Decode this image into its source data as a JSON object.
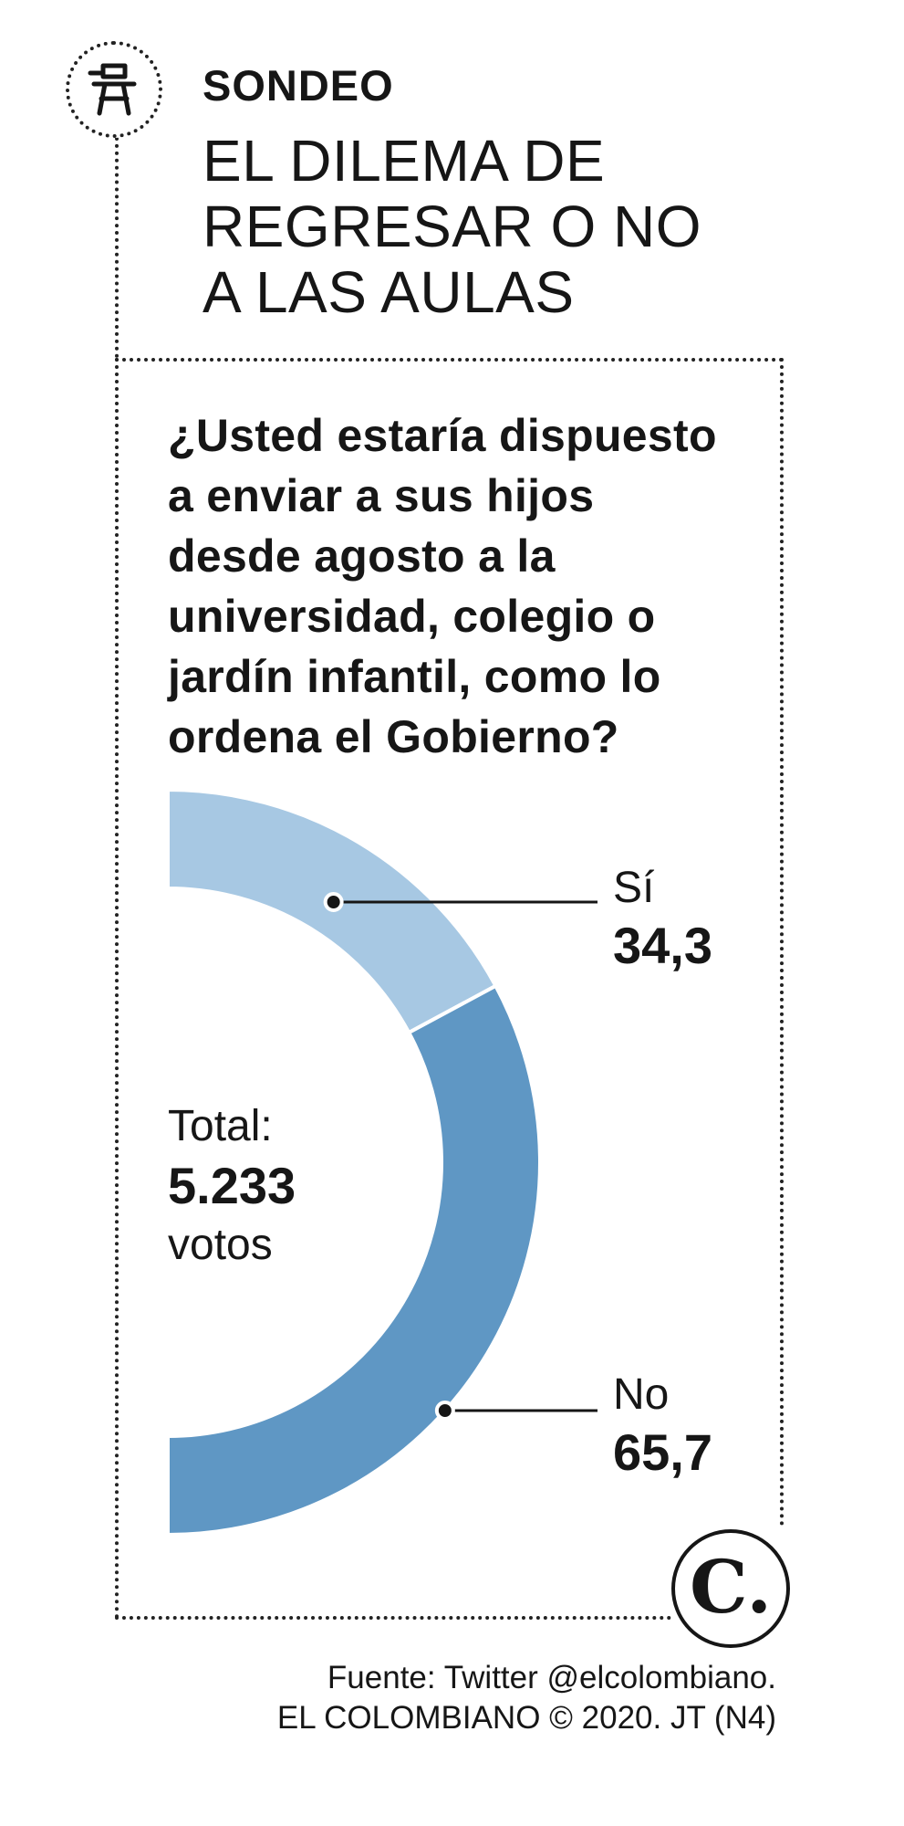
{
  "header": {
    "section_label": "SONDEO",
    "headline_lines": [
      "EL DILEMA DE",
      "REGRESAR O NO",
      "A LAS AULAS"
    ],
    "icon": "school-desk-icon"
  },
  "question_lines": [
    "¿Usted estaría dispuesto",
    "a enviar a sus hijos",
    "desde agosto a la",
    "universidad, colegio o",
    "jardín infantil, como lo",
    "ordena el Gobierno?"
  ],
  "chart_data": {
    "type": "pie",
    "style": "half-donut",
    "title": "¿Usted estaría dispuesto a enviar a sus hijos desde agosto a la universidad, colegio o jardín infantil, como lo ordena el Gobierno?",
    "categories": [
      "Sí",
      "No"
    ],
    "values": [
      34.3,
      65.7
    ],
    "value_labels": [
      "34,3",
      "65,7"
    ],
    "colors": [
      "#a7c8e3",
      "#5f97c4"
    ],
    "center_label": {
      "label": "Total:",
      "value": "5.233",
      "unit": "votos"
    }
  },
  "footer": {
    "source": "Fuente: Twitter @elcolombiano.",
    "credit": "EL COLOMBIANO © 2020. JT (N4)",
    "brand_letter": "C."
  }
}
